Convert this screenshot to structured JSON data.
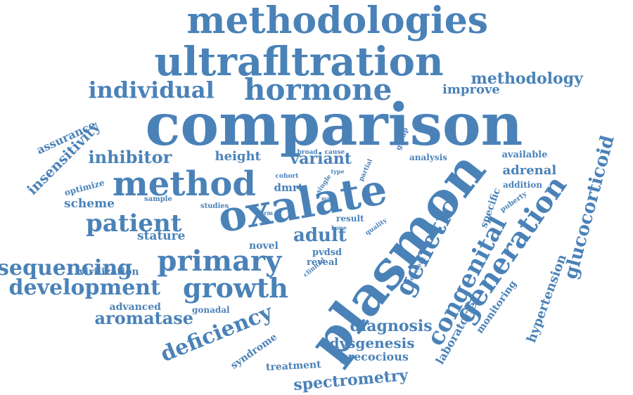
{
  "style": {
    "word_color": "#4a82b8",
    "background": "#ffffff"
  },
  "words": [
    {
      "text": "comparison",
      "vertical": false
    },
    {
      "text": "plasmon",
      "vertical": true
    },
    {
      "text": "oxalate",
      "vertical": true
    },
    {
      "text": "methodologies",
      "vertical": false
    },
    {
      "text": "ultrafltration",
      "vertical": false
    },
    {
      "text": "hormone",
      "vertical": false
    },
    {
      "text": "method",
      "vertical": false
    },
    {
      "text": "primary",
      "vertical": false
    },
    {
      "text": "generation",
      "vertical": true
    },
    {
      "text": "growth",
      "vertical": false
    },
    {
      "text": "development",
      "vertical": false
    },
    {
      "text": "patient",
      "vertical": false
    },
    {
      "text": "genetic",
      "vertical": true
    },
    {
      "text": "congenital",
      "vertical": true
    },
    {
      "text": "individual",
      "vertical": false
    },
    {
      "text": "sequencing",
      "vertical": false
    },
    {
      "text": "deficiency",
      "vertical": true
    },
    {
      "text": "glucocorticoid",
      "vertical": true
    },
    {
      "text": "methodology",
      "vertical": false
    },
    {
      "text": "inhibitor",
      "vertical": false
    },
    {
      "text": "aromatase",
      "vertical": false
    },
    {
      "text": "diagnosis",
      "vertical": false
    },
    {
      "text": "adult",
      "vertical": false
    },
    {
      "text": "spectrometry",
      "vertical": false
    },
    {
      "text": "variant",
      "vertical": false
    },
    {
      "text": "insensitivity",
      "vertical": true
    },
    {
      "text": "hypertension",
      "vertical": true
    },
    {
      "text": "height",
      "vertical": false
    },
    {
      "text": "dysgenesis",
      "vertical": false
    },
    {
      "text": "improve",
      "vertical": false
    },
    {
      "text": "laboratories",
      "vertical": true
    },
    {
      "text": "adrenal",
      "vertical": false
    },
    {
      "text": "precocious",
      "vertical": false
    },
    {
      "text": "assurance",
      "vertical": true
    },
    {
      "text": "scheme",
      "vertical": false
    },
    {
      "text": "stature",
      "vertical": false
    },
    {
      "text": "monitoring",
      "vertical": true
    },
    {
      "text": "virilization",
      "vertical": false
    },
    {
      "text": "advanced",
      "vertical": false
    },
    {
      "text": "treatment",
      "vertical": false
    },
    {
      "text": "specific",
      "vertical": true
    },
    {
      "text": "syndrome",
      "vertical": true
    },
    {
      "text": "available",
      "vertical": false
    },
    {
      "text": "novel",
      "vertical": false
    },
    {
      "text": "pvdsd",
      "vertical": false
    },
    {
      "text": "reveal",
      "vertical": false
    },
    {
      "text": "dmrt",
      "vertical": false
    },
    {
      "text": "gonadal",
      "vertical": false
    },
    {
      "text": "addition",
      "vertical": false
    },
    {
      "text": "analysis",
      "vertical": false
    },
    {
      "text": "optimize",
      "vertical": true
    },
    {
      "text": "result",
      "vertical": false
    },
    {
      "text": "studies",
      "vertical": false
    },
    {
      "text": "puberty",
      "vertical": true
    },
    {
      "text": "sample",
      "vertical": false
    },
    {
      "text": "group",
      "vertical": true
    },
    {
      "text": "broad",
      "vertical": false
    },
    {
      "text": "cause",
      "vertical": false
    },
    {
      "text": "partial",
      "vertical": true
    },
    {
      "text": "cohort",
      "vertical": false
    },
    {
      "text": "quality",
      "vertical": true
    },
    {
      "text": "clinical",
      "vertical": true
    },
    {
      "text": "deficient",
      "vertical": true
    },
    {
      "text": "single",
      "vertical": true
    },
    {
      "text": "type",
      "vertical": false
    },
    {
      "text": "bone",
      "vertical": false
    },
    {
      "text": "term",
      "vertical": false
    },
    {
      "text": "mas",
      "vertical": false
    }
  ]
}
